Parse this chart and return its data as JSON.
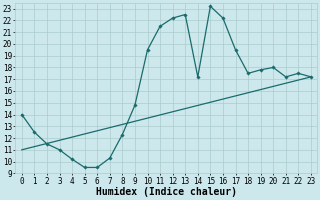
{
  "title": "",
  "xlabel": "Humidex (Indice chaleur)",
  "bg_color": "#cce8ec",
  "grid_color": "#aacccc",
  "line_color": "#1a6b6b",
  "xlim": [
    -0.5,
    23.5
  ],
  "ylim": [
    9,
    23.5
  ],
  "yticks": [
    9,
    10,
    11,
    12,
    13,
    14,
    15,
    16,
    17,
    18,
    19,
    20,
    21,
    22,
    23
  ],
  "xticks": [
    0,
    1,
    2,
    3,
    4,
    5,
    6,
    7,
    8,
    9,
    10,
    11,
    12,
    13,
    14,
    15,
    16,
    17,
    18,
    19,
    20,
    21,
    22,
    23
  ],
  "curve_x": [
    0,
    1,
    2,
    3,
    4,
    5,
    6,
    7,
    8,
    9,
    10,
    11,
    12,
    13,
    14,
    15,
    16,
    17,
    18,
    19,
    20,
    21,
    22,
    23
  ],
  "curve_y": [
    14,
    12.5,
    11.5,
    11,
    10.2,
    9.5,
    9.5,
    10.3,
    12.3,
    14.8,
    19.5,
    21.5,
    22.2,
    22.5,
    17.2,
    23.2,
    22.2,
    19.5,
    17.5,
    17.8,
    18.0,
    17.2,
    17.5,
    17.2
  ],
  "line_x": [
    0,
    23
  ],
  "line_y": [
    11.0,
    17.2
  ],
  "tick_fontsize": 5.5,
  "xlabel_fontsize": 7.0
}
